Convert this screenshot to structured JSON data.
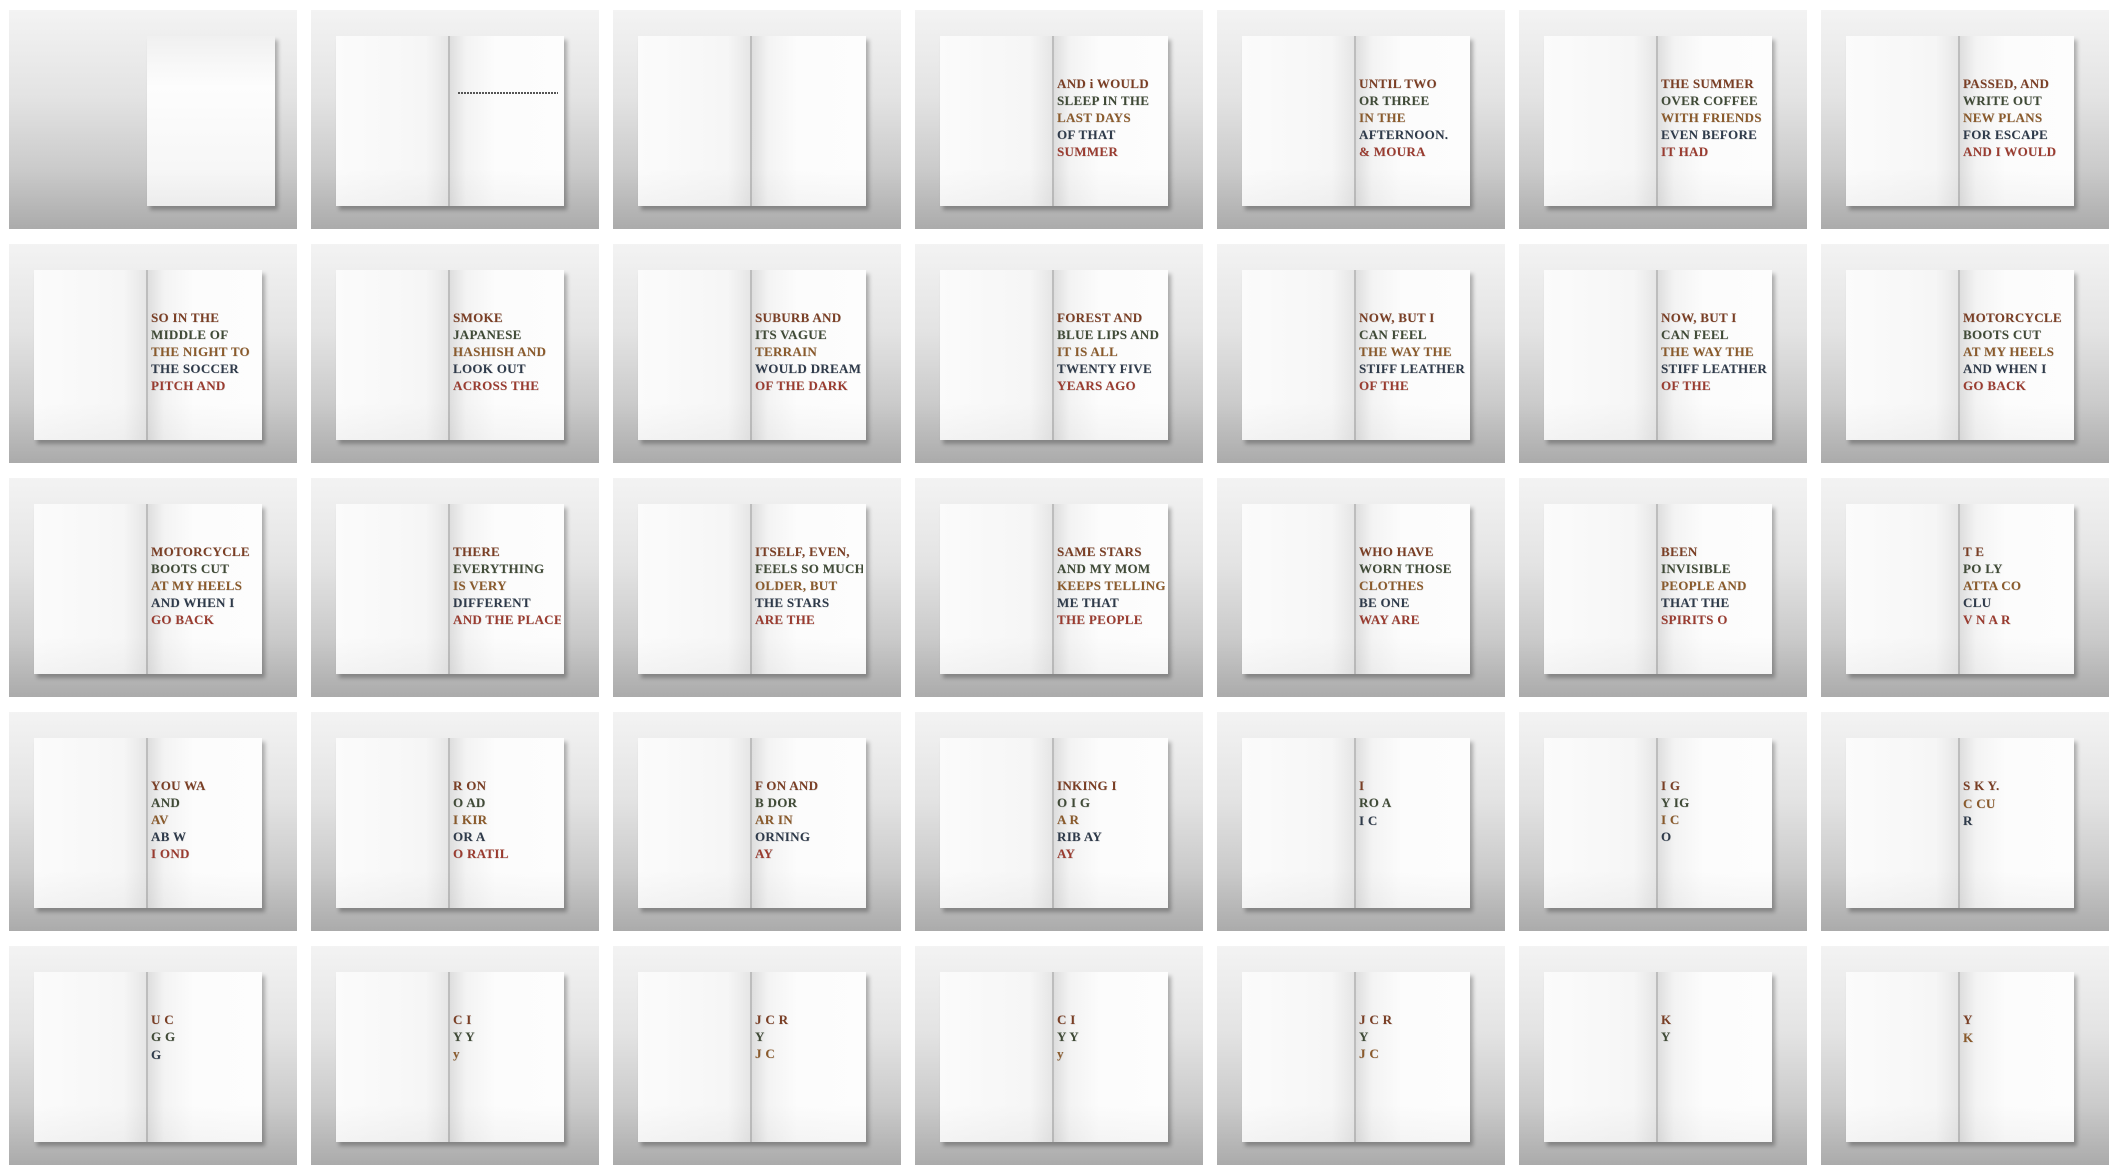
{
  "spreads": [
    {
      "type": "cover",
      "lines": []
    },
    {
      "type": "title",
      "lines": []
    },
    {
      "type": "blank",
      "lines": []
    },
    {
      "type": "text",
      "lines": [
        "AND i WOULD",
        "SLEEP IN THE",
        "LAST DAYS",
        "OF THAT",
        "SUMMER"
      ]
    },
    {
      "type": "text",
      "lines": [
        "UNTIL TWO",
        "OR THREE",
        "IN THE",
        "AFTERNOON.",
        "& MOURA"
      ]
    },
    {
      "type": "text",
      "lines": [
        "THE SUMMER",
        "OVER COFFEE",
        "WITH FRIENDS",
        "EVEN BEFORE",
        "IT HAD"
      ]
    },
    {
      "type": "text",
      "lines": [
        "PASSED, AND",
        "WRITE OUT",
        "NEW PLANS",
        "FOR ESCAPE",
        "AND I WOULD"
      ]
    },
    {
      "type": "text",
      "lines": [
        "SO IN THE",
        "MIDDLE OF",
        "THE NIGHT TO",
        "THE SOCCER",
        "PITCH AND"
      ]
    },
    {
      "type": "text",
      "lines": [
        "SMOKE",
        "JAPANESE",
        "HASHISH AND",
        "LOOK OUT",
        "ACROSS THE"
      ]
    },
    {
      "type": "text",
      "lines": [
        "SUBURB AND",
        "ITS VAGUE",
        "TERRAIN",
        "WOULD DREAM",
        "OF THE DARK"
      ]
    },
    {
      "type": "text",
      "lines": [
        "FOREST AND",
        "BLUE LIPS AND",
        "IT IS ALL",
        "TWENTY FIVE",
        "YEARS AGO"
      ]
    },
    {
      "type": "text",
      "lines": [
        "NOW, BUT I",
        "CAN FEEL",
        "THE WAY THE",
        "STIFF LEATHER",
        "OF THE"
      ]
    },
    {
      "type": "text",
      "lines": [
        "NOW, BUT I",
        "CAN FEEL",
        "THE WAY THE",
        "STIFF LEATHER",
        "OF THE"
      ]
    },
    {
      "type": "text",
      "lines": [
        "MOTORCYCLE",
        "BOOTS CUT",
        "AT MY HEELS",
        "AND WHEN I",
        "GO BACK"
      ]
    },
    {
      "type": "text",
      "lines": [
        "MOTORCYCLE",
        "BOOTS CUT",
        "AT MY HEELS",
        "AND WHEN I",
        "GO BACK"
      ]
    },
    {
      "type": "text",
      "lines": [
        "THERE",
        "EVERYTHING",
        "IS VERY",
        "DIFFERENT",
        "AND THE PLACE"
      ]
    },
    {
      "type": "text",
      "lines": [
        "ITSELF, EVEN,",
        "FEELS SO MUCH",
        "OLDER, BUT",
        "THE STARS",
        "ARE THE"
      ]
    },
    {
      "type": "text",
      "lines": [
        "SAME STARS",
        "AND MY MOM",
        "KEEPS TELLING",
        "ME THAT",
        "THE PEOPLE"
      ]
    },
    {
      "type": "text",
      "lines": [
        "WHO HAVE",
        "WORN THOSE",
        "CLOTHES",
        "BE ONE",
        "WAY ARE"
      ]
    },
    {
      "type": "text",
      "lines": [
        "BEEN",
        "INVISIBLE",
        "PEOPLE AND",
        "THAT THE",
        "SPIRITS O"
      ]
    },
    {
      "type": "text",
      "lines": [
        "T E",
        "PO LY",
        "ATTA CO",
        "CLU",
        "V N A R"
      ]
    },
    {
      "type": "text",
      "lines": [
        "YOU WA",
        "AND",
        "AV",
        "AB W",
        "I OND"
      ]
    },
    {
      "type": "text",
      "lines": [
        "R ON",
        "O AD",
        "I KIR",
        "OR A",
        "O RATIL"
      ]
    },
    {
      "type": "text",
      "lines": [
        "F ON AND",
        "B DOR",
        "AR IN",
        "ORNING",
        "AY"
      ]
    },
    {
      "type": "text",
      "lines": [
        "INKING I",
        "O I G",
        "A R",
        "RIB AY",
        "AY"
      ]
    },
    {
      "type": "text",
      "lines": [
        "I",
        "RO A",
        "",
        "I C"
      ]
    },
    {
      "type": "text",
      "lines": [
        "I G",
        "Y IG",
        "I C",
        "O"
      ]
    },
    {
      "type": "text",
      "lines": [
        "S K Y.",
        "",
        "C CU",
        "R"
      ]
    },
    {
      "type": "text",
      "lines": [
        "U C",
        "G G",
        "",
        "G"
      ]
    },
    {
      "type": "text",
      "lines": [
        "C I",
        "Y Y",
        "y"
      ]
    },
    {
      "type": "text",
      "lines": [
        "J C R",
        "Y",
        "J C"
      ]
    },
    {
      "type": "text",
      "lines": [
        "C I",
        "Y Y",
        "y"
      ]
    },
    {
      "type": "text",
      "lines": [
        "J C R",
        "Y",
        "J C"
      ]
    },
    {
      "type": "text",
      "lines": [
        "K",
        "Y"
      ]
    },
    {
      "type": "text",
      "lines": [
        "Y",
        "",
        "K"
      ]
    }
  ]
}
